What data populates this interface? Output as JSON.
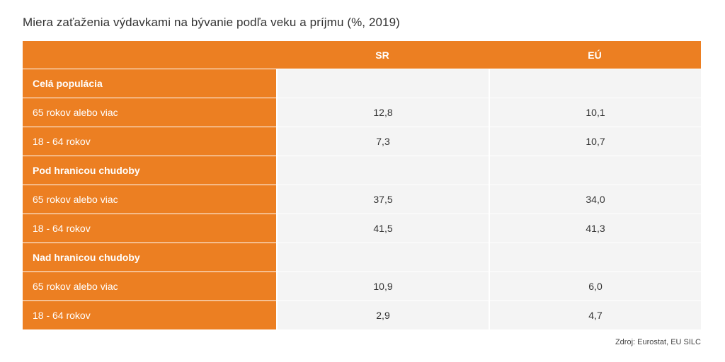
{
  "title": "Miera zaťaženia výdavkami na bývanie podľa veku a príjmu (%, 2019)",
  "source": "Zdroj: Eurostat, EU SILC",
  "colors": {
    "accent": "#ec7f22",
    "cell_bg": "#f4f4f4"
  },
  "chart_data": {
    "type": "table",
    "title": "Miera zaťaženia výdavkami na bývanie podľa veku a príjmu (%, 2019)",
    "columns": [
      "",
      "SR",
      "EÚ"
    ],
    "rows": [
      {
        "label": "Celá populácia",
        "group": true,
        "values": [
          "",
          ""
        ]
      },
      {
        "label": "65 rokov alebo viac",
        "group": false,
        "values": [
          "12,8",
          "10,1"
        ]
      },
      {
        "label": "18 - 64 rokov",
        "group": false,
        "values": [
          "7,3",
          "10,7"
        ]
      },
      {
        "label": "Pod hranicou chudoby",
        "group": true,
        "values": [
          "",
          ""
        ]
      },
      {
        "label": "65 rokov alebo viac",
        "group": false,
        "values": [
          "37,5",
          "34,0"
        ]
      },
      {
        "label": "18 - 64 rokov",
        "group": false,
        "values": [
          "41,5",
          "41,3"
        ]
      },
      {
        "label": "Nad hranicou chudoby",
        "group": true,
        "values": [
          "",
          ""
        ]
      },
      {
        "label": "65 rokov alebo viac",
        "group": false,
        "values": [
          "10,9",
          "6,0"
        ]
      },
      {
        "label": "18 - 64 rokov",
        "group": false,
        "values": [
          "2,9",
          "4,7"
        ]
      }
    ]
  }
}
